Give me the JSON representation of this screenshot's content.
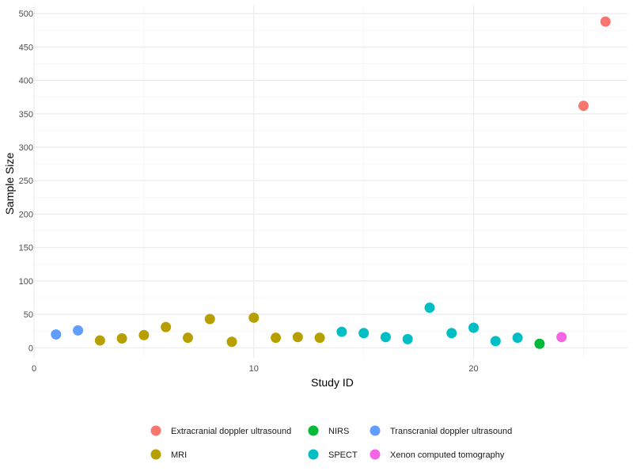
{
  "chart_data": {
    "type": "scatter",
    "xlabel": "Study ID",
    "ylabel": "Sample Size",
    "xlim": [
      0,
      27
    ],
    "ylim": [
      -15,
      512
    ],
    "x_ticks": [
      0,
      10,
      20
    ],
    "y_ticks": [
      0,
      50,
      100,
      150,
      200,
      250,
      300,
      350,
      400,
      450,
      500
    ],
    "grid": true,
    "legend_position": "bottom",
    "series": [
      {
        "name": "Extracranial doppler ultrasound",
        "color": "#F8766D",
        "points": [
          {
            "x": 25,
            "y": 362
          },
          {
            "x": 26,
            "y": 488
          }
        ]
      },
      {
        "name": "MRI",
        "color": "#B79F00",
        "points": [
          {
            "x": 3,
            "y": 11
          },
          {
            "x": 4,
            "y": 14
          },
          {
            "x": 5,
            "y": 19
          },
          {
            "x": 6,
            "y": 31
          },
          {
            "x": 7,
            "y": 15
          },
          {
            "x": 8,
            "y": 43
          },
          {
            "x": 9,
            "y": 9
          },
          {
            "x": 10,
            "y": 45
          },
          {
            "x": 11,
            "y": 15
          },
          {
            "x": 12,
            "y": 16
          },
          {
            "x": 13,
            "y": 15
          }
        ]
      },
      {
        "name": "NIRS",
        "color": "#00BA38",
        "points": [
          {
            "x": 23,
            "y": 6
          }
        ]
      },
      {
        "name": "SPECT",
        "color": "#00BFC4",
        "points": [
          {
            "x": 14,
            "y": 24
          },
          {
            "x": 15,
            "y": 22
          },
          {
            "x": 16,
            "y": 16
          },
          {
            "x": 17,
            "y": 13
          },
          {
            "x": 18,
            "y": 60
          },
          {
            "x": 19,
            "y": 22
          },
          {
            "x": 20,
            "y": 30
          },
          {
            "x": 21,
            "y": 10
          },
          {
            "x": 22,
            "y": 15
          }
        ]
      },
      {
        "name": "Transcranial doppler ultrasound",
        "color": "#619CFF",
        "points": [
          {
            "x": 1,
            "y": 20
          },
          {
            "x": 2,
            "y": 26
          }
        ]
      },
      {
        "name": "Xenon computed tomography",
        "color": "#F564E3",
        "points": [
          {
            "x": 24,
            "y": 16
          }
        ]
      }
    ]
  }
}
